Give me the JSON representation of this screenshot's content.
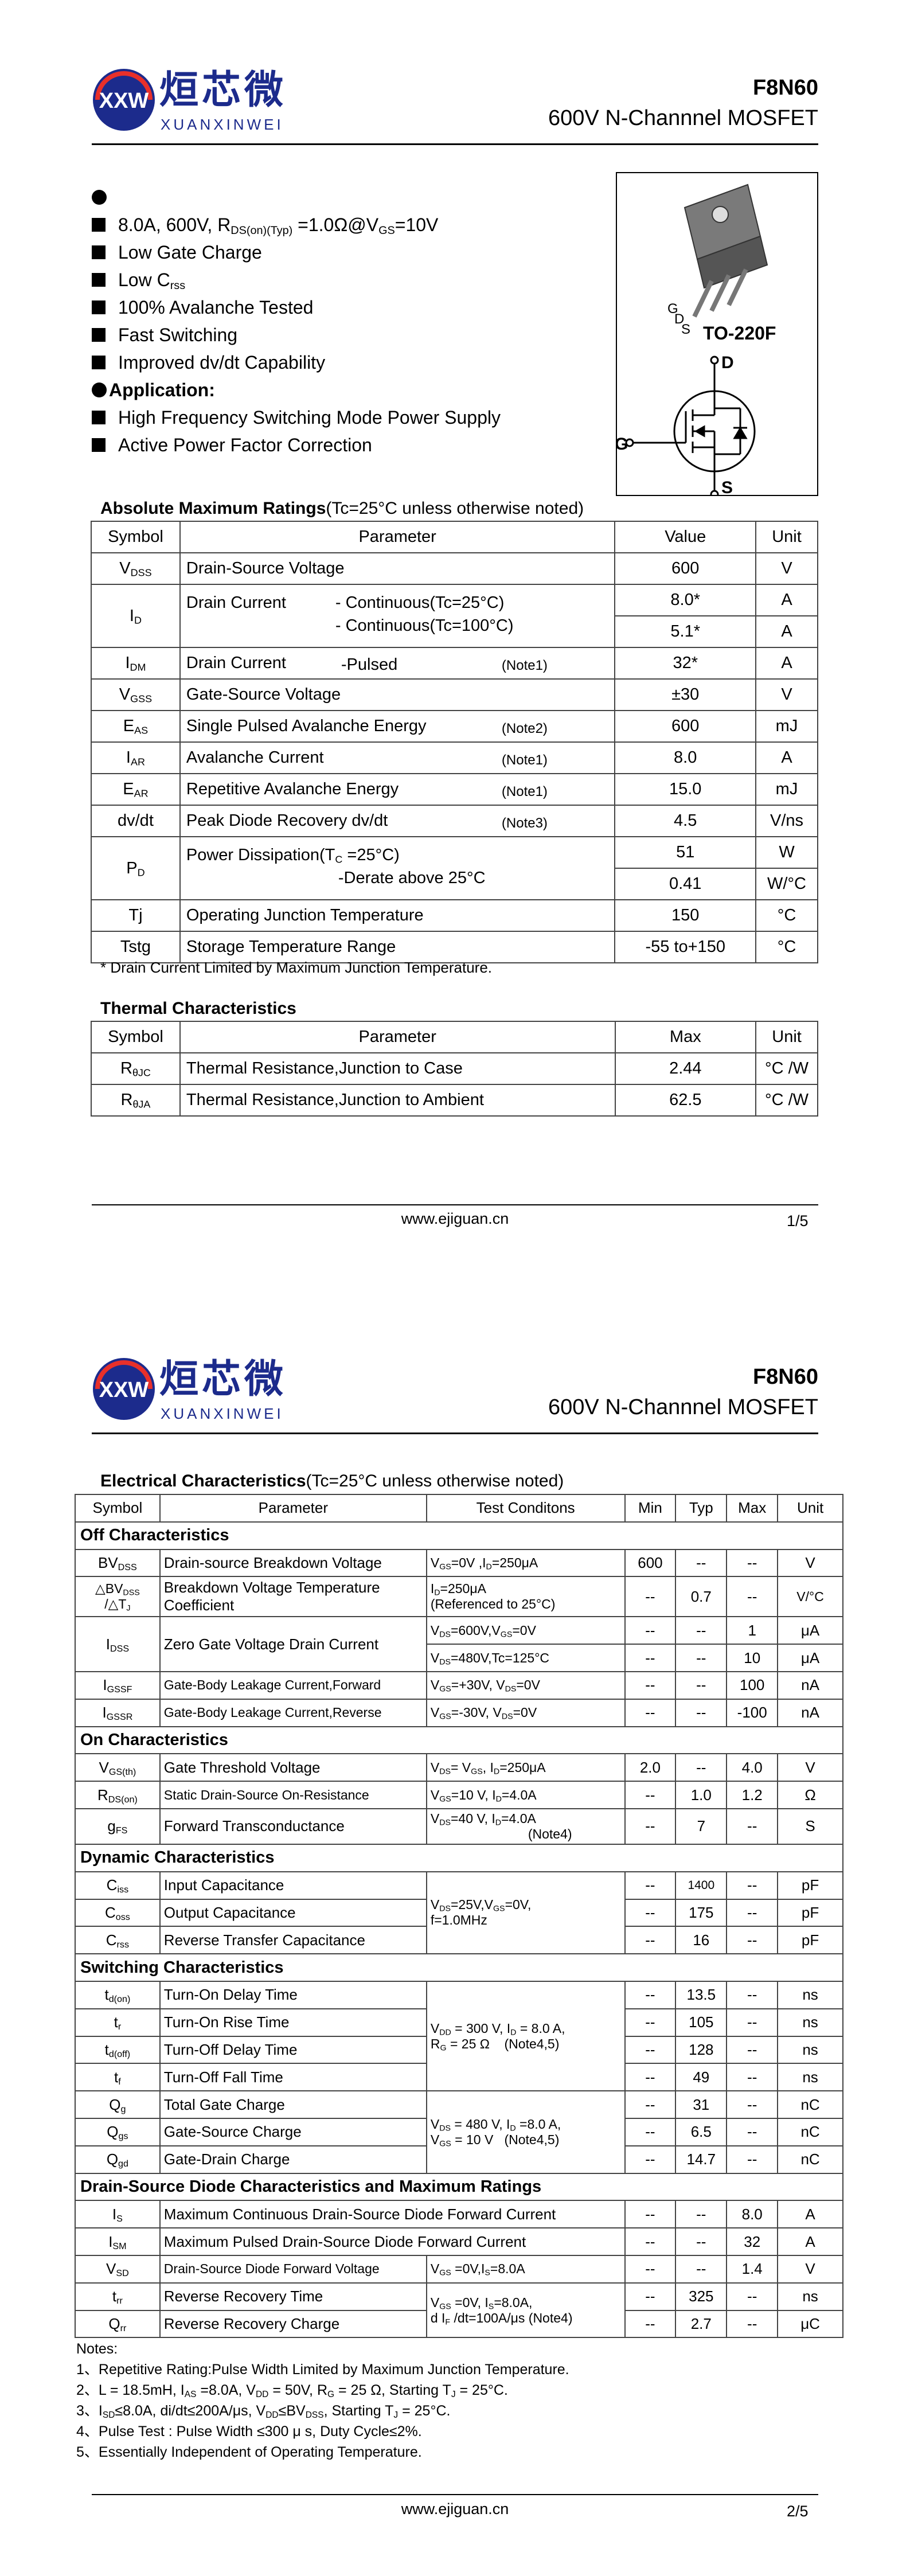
{
  "header": {
    "logo_cn": "烜芯微",
    "logo_en": "XUANXINWEI",
    "logo_mark": "XXW",
    "part": "F8N60",
    "description": "600V N-Channnel MOSFET"
  },
  "features": {
    "items": [
      "8.0A, 600V, R",
      "Low Gate Charge",
      "Low C",
      "100% Avalanche Tested",
      "Fast Switching",
      "Improved dv/dt Capability"
    ],
    "spec_sub": "DS(on)(Typ)",
    "spec_rest": " =1.0Ω@V",
    "spec_sub2": "GS",
    "spec_end": "=10V",
    "crss_sub": "rss",
    "application_title": "Application:",
    "applications": [
      "High Frequency Switching Mode Power Supply",
      "Active Power Factor Correction"
    ]
  },
  "package": {
    "name": "TO-220F",
    "pins": [
      "G",
      "D",
      "S"
    ],
    "symbol_pins": [
      "D",
      "G",
      "S"
    ]
  },
  "abs_max": {
    "title": "Absolute Maximum Ratings",
    "title_cond": "(Tc=25°C unless otherwise noted)",
    "headers": [
      "Symbol",
      "Parameter",
      "Value",
      "Unit"
    ],
    "rows": [
      {
        "sym": "V",
        "sub": "DSS",
        "param": "Drain-Source Voltage",
        "note": "",
        "value": "600",
        "unit": "V"
      },
      {
        "sym": "I",
        "sub": "D",
        "param": "Drain Current",
        "cond1": "- Continuous(Tc=25°C)",
        "cond2": "- Continuous(Tc=100°C)",
        "value1": "8.0*",
        "value2": "5.1*",
        "unit": "A"
      },
      {
        "sym": "I",
        "sub": "DM",
        "param": "Drain Current",
        "cond": "-Pulsed",
        "note": "(Note1)",
        "value": "32*",
        "unit": "A"
      },
      {
        "sym": "V",
        "sub": "GSS",
        "param": "Gate-Source Voltage",
        "note": "",
        "value": "±30",
        "unit": "V"
      },
      {
        "sym": "E",
        "sub": "AS",
        "param": "Single Pulsed Avalanche Energy",
        "note": "(Note2)",
        "value": "600",
        "unit": "mJ"
      },
      {
        "sym": "I",
        "sub": "AR",
        "param": "Avalanche Current",
        "note": "(Note1)",
        "value": "8.0",
        "unit": "A"
      },
      {
        "sym": "E",
        "sub": "AR",
        "param": "Repetitive Avalanche Energy",
        "note": "(Note1)",
        "value": "15.0",
        "unit": "mJ"
      },
      {
        "sym": "dv/dt",
        "sub": "",
        "param": "Peak Diode Recovery dv/dt",
        "note": "(Note3)",
        "value": "4.5",
        "unit": "V/ns"
      },
      {
        "sym": "P",
        "sub": "D",
        "param": "Power Dissipation(T",
        "param_sub": "C",
        "param_end": " =25°C)",
        "cond2": "-Derate above 25°C",
        "value1": "51",
        "value2": "0.41",
        "unit1": "W",
        "unit2": "W/°C"
      },
      {
        "sym": "Tj",
        "sub": "",
        "param": "Operating Junction Temperature",
        "note": "",
        "value": "150",
        "unit": "°C"
      },
      {
        "sym": "Tstg",
        "sub": "",
        "param": "Storage Temperature Range",
        "note": "",
        "value": "-55 to+150",
        "unit": "°C"
      }
    ],
    "footnote": "* Drain Current Limited by Maximum Junction Temperature."
  },
  "thermal": {
    "title": "Thermal Characteristics",
    "headers": [
      "Symbol",
      "Parameter",
      "Max",
      "Unit"
    ],
    "rows": [
      {
        "sym": "R",
        "sub": "θJC",
        "param": "Thermal Resistance,Junction to Case",
        "value": "2.44",
        "unit": "°C /W"
      },
      {
        "sym": "R",
        "sub": "θJA",
        "param": "Thermal Resistance,Junction to Ambient",
        "value": "62.5",
        "unit": "°C /W"
      }
    ]
  },
  "footer": {
    "url": "www.ejiguan.cn",
    "page1": "1/5",
    "page2": "2/5"
  },
  "elec": {
    "title": "Electrical Characteristics",
    "title_cond": "(Tc=25°C unless otherwise noted)",
    "headers": [
      "Symbol",
      "Parameter",
      "Test Conditons",
      "Min",
      "Typ",
      "Max",
      "Unit"
    ],
    "sections": [
      "Off Characteristics",
      "On Characteristics",
      "Dynamic Characteristics",
      "Switching Characteristics",
      "Drain-Source Diode Characteristics and Maximum Ratings"
    ],
    "rows": [
      {
        "sym": "BV",
        "sub": "DSS",
        "param": "Drain-source Breakdown Voltage",
        "cond": "V",
        "min": "600",
        "typ": "--",
        "max": "--",
        "unit": "V"
      },
      {
        "sym": "△BV",
        "sub": "DSS",
        "sym2": "/△T",
        "sub2": "J",
        "param": "Breakdown Voltage Temperature",
        "param2": "Coefficient",
        "cond": "I",
        "cond2": "(Referenced to 25°C)",
        "min": "--",
        "typ": "0.7",
        "max": "--",
        "unit": "V/°C"
      },
      {
        "sym": "I",
        "sub": "DSS",
        "param": "Zero Gate Voltage Drain Current",
        "min1": "--",
        "typ1": "--",
        "max1": "1",
        "unit1": "μA",
        "min2": "--",
        "typ2": "--",
        "max2": "10",
        "unit2": "μA"
      },
      {
        "sym": "I",
        "sub": "GSSF",
        "param": "Gate-Body Leakage Current,Forward",
        "min": "--",
        "typ": "--",
        "max": "100",
        "unit": "nA"
      },
      {
        "sym": "I",
        "sub": "GSSR",
        "param": "Gate-Body Leakage Current,Reverse",
        "min": "--",
        "typ": "--",
        "max": "-100",
        "unit": "nA"
      },
      {
        "sym": "V",
        "sub": "GS(th)",
        "param": "Gate Threshold Voltage",
        "min": "2.0",
        "typ": "--",
        "max": "4.0",
        "unit": "V"
      },
      {
        "sym": "R",
        "sub": "DS(on)",
        "param": "Static Drain-Source On-Resistance",
        "min": "--",
        "typ": "1.0",
        "max": "1.2",
        "unit": "Ω"
      },
      {
        "sym": "g",
        "sub": "FS",
        "param": "Forward Transconductance",
        "note": "(Note4)",
        "min": "--",
        "typ": "7",
        "max": "--",
        "unit": "S"
      },
      {
        "sym": "C",
        "sub": "iss",
        "param": "Input Capacitance",
        "min": "--",
        "typ": "1400",
        "max": "--",
        "unit": "pF"
      },
      {
        "sym": "C",
        "sub": "oss",
        "param": "Output Capacitance",
        "min": "--",
        "typ": "175",
        "max": "--",
        "unit": "pF"
      },
      {
        "sym": "C",
        "sub": "rss",
        "param": "Reverse Transfer Capacitance",
        "min": "--",
        "typ": "16",
        "max": "--",
        "unit": "pF"
      },
      {
        "sym": "t",
        "sub": "d(on)",
        "param": "Turn-On Delay Time",
        "min": "--",
        "typ": "13.5",
        "max": "--",
        "unit": "ns"
      },
      {
        "sym": "t",
        "sub": "r",
        "param": "Turn-On Rise Time",
        "min": "--",
        "typ": "105",
        "max": "--",
        "unit": "ns"
      },
      {
        "sym": "t",
        "sub": "d(off)",
        "param": "Turn-Off Delay Time",
        "min": "--",
        "typ": "128",
        "max": "--",
        "unit": "ns"
      },
      {
        "sym": "t",
        "sub": "f",
        "param": "Turn-Off Fall Time",
        "min": "--",
        "typ": "49",
        "max": "--",
        "unit": "ns"
      },
      {
        "sym": "Q",
        "sub": "g",
        "param": "Total Gate Charge",
        "min": "--",
        "typ": "31",
        "max": "--",
        "unit": "nC"
      },
      {
        "sym": "Q",
        "sub": "gs",
        "param": "Gate-Source Charge",
        "min": "--",
        "typ": "6.5",
        "max": "--",
        "unit": "nC"
      },
      {
        "sym": "Q",
        "sub": "gd",
        "param": "Gate-Drain Charge",
        "min": "--",
        "typ": "14.7",
        "max": "--",
        "unit": "nC"
      },
      {
        "sym": "I",
        "sub": "S",
        "param": "Maximum Continuous Drain-Source Diode Forward Current",
        "min": "--",
        "typ": "--",
        "max": "8.0",
        "unit": "A"
      },
      {
        "sym": "I",
        "sub": "SM",
        "param": "Maximum Pulsed Drain-Source Diode Forward Current",
        "min": "--",
        "typ": "--",
        "max": "32",
        "unit": "A"
      },
      {
        "sym": "V",
        "sub": "SD",
        "param": "Drain-Source Diode Forward Voltage",
        "min": "--",
        "typ": "--",
        "max": "1.4",
        "unit": "V"
      },
      {
        "sym": "t",
        "sub": "rr",
        "param": "Reverse Recovery Time",
        "min": "--",
        "typ": "325",
        "max": "--",
        "unit": "ns"
      },
      {
        "sym": "Q",
        "sub": "rr",
        "param": "Reverse Recovery Charge",
        "min": "--",
        "typ": "2.7",
        "max": "--",
        "unit": "μC"
      }
    ],
    "conds": {
      "bvdss": "V<sub>GS</sub>=0V ,I<sub>D</sub>=250μA",
      "dbv1": "I<sub>D</sub>=250μA",
      "dbv2": "(Referenced to 25°C)",
      "idss1": "V<sub>DS</sub>=600V,V<sub>GS</sub>=0V",
      "idss2": "V<sub>DS</sub>=480V,Tc=125°C",
      "igssf": "V<sub>GS</sub>=+30V, V<sub>DS</sub>=0V",
      "igssr": "V<sub>GS</sub>=-30V, V<sub>DS</sub>=0V",
      "vgsth": "V<sub>DS</sub>= V<sub>GS</sub>, I<sub>D</sub>=250μA",
      "rdson": "V<sub>GS</sub>=10 V, I<sub>D</sub>=4.0A",
      "gfs": "V<sub>DS</sub>=40 V, I<sub>D</sub>=4.0A",
      "dyn": "V<sub>DS</sub>=25V,V<sub>GS</sub>=0V,<br>f=1.0MHz",
      "sw": "V<sub>DD</sub> = 300 V, I<sub>D</sub> = 8.0 A,<br>R<sub>G</sub> = 25 Ω &nbsp;&nbsp;&nbsp;(Note4,5)",
      "qg": "V<sub>DS</sub> = 480 V, I<sub>D</sub> =8.0 A,<br>V<sub>GS</sub> = 10 V &nbsp;&nbsp;(Note4,5)",
      "vsd": "V<sub>GS</sub> =0V,I<sub>S</sub>=8.0A",
      "trr": "V<sub>GS</sub> =0V, I<sub>S</sub>=8.0A,<br>d I<sub>F</sub> /dt=100A/μs (Note4)"
    },
    "notes_title": "Notes:",
    "notes": [
      "1、Repetitive Rating:Pulse Width Limited by Maximum Junction Temperature.",
      "2、L = 18.5mH, I<sub>AS</sub> =8.0A, V<sub>DD</sub> = 50V, R<sub>G</sub> = 25 Ω, Starting T<sub>J</sub> = 25°C.",
      "3、I<sub>SD</sub>≤8.0A, di/dt≤200A/μs, V<sub>DD</sub>≤BV<sub>DSS</sub>, Starting T<sub>J</sub> = 25°C.",
      "4、Pulse Test : Pulse Width ≤300 μ s, Duty Cycle≤2%.",
      "5、Essentially Independent of Operating Temperature."
    ]
  }
}
